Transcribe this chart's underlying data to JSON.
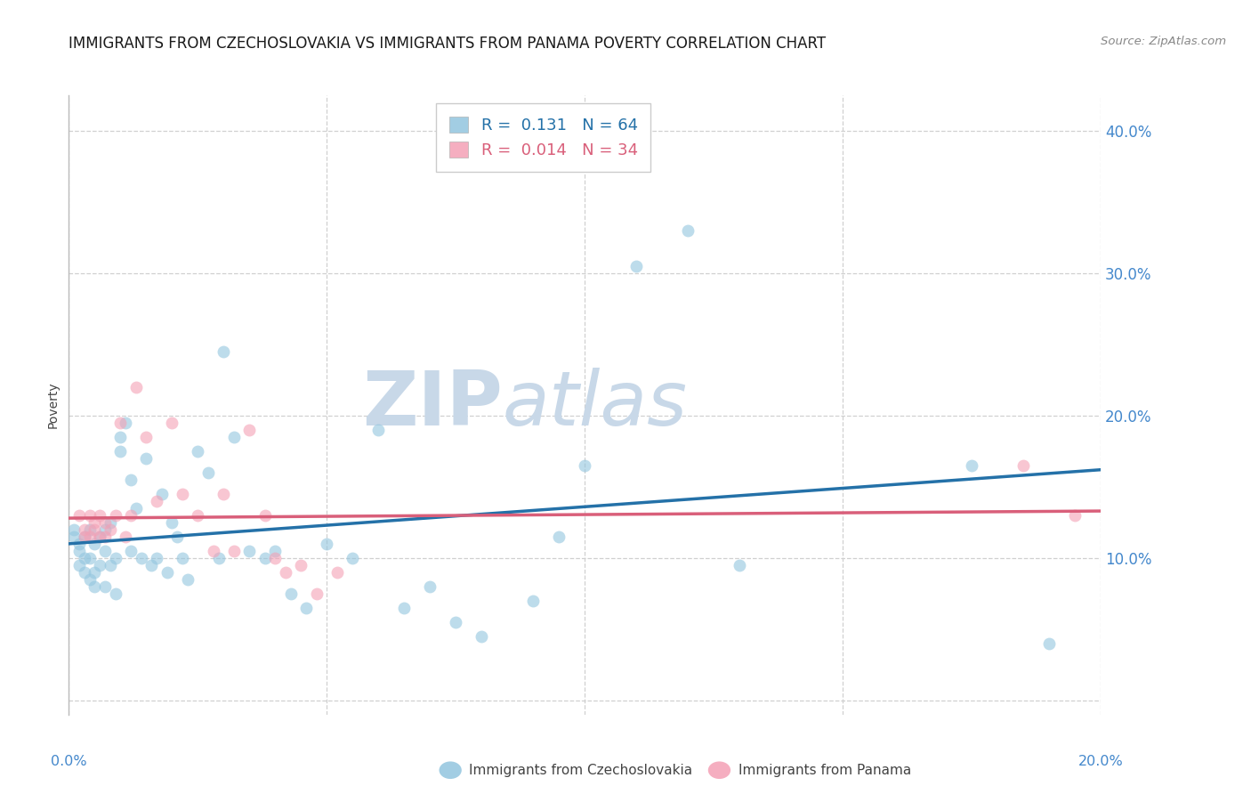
{
  "title": "IMMIGRANTS FROM CZECHOSLOVAKIA VS IMMIGRANTS FROM PANAMA POVERTY CORRELATION CHART",
  "source": "Source: ZipAtlas.com",
  "ylabel": "Poverty",
  "watermark_zip": "ZIP",
  "watermark_atlas": "atlas",
  "legend": [
    {
      "label": "Immigrants from Czechoslovakia",
      "color": "#92c5de",
      "R": "0.131",
      "N": "64"
    },
    {
      "label": "Immigrants from Panama",
      "color": "#f4a0b5",
      "R": "0.014",
      "N": "34"
    }
  ],
  "x_min": 0.0,
  "x_max": 0.2,
  "y_min": -0.01,
  "y_max": 0.425,
  "yticks": [
    0.0,
    0.1,
    0.2,
    0.3,
    0.4
  ],
  "ytick_labels": [
    "",
    "10.0%",
    "20.0%",
    "30.0%",
    "40.0%"
  ],
  "xticks": [
    0.0,
    0.05,
    0.1,
    0.15,
    0.2
  ],
  "blue_scatter_x": [
    0.001,
    0.001,
    0.002,
    0.002,
    0.002,
    0.003,
    0.003,
    0.003,
    0.004,
    0.004,
    0.004,
    0.005,
    0.005,
    0.005,
    0.006,
    0.006,
    0.007,
    0.007,
    0.007,
    0.008,
    0.008,
    0.009,
    0.009,
    0.01,
    0.01,
    0.011,
    0.012,
    0.012,
    0.013,
    0.014,
    0.015,
    0.016,
    0.017,
    0.018,
    0.019,
    0.02,
    0.021,
    0.022,
    0.023,
    0.025,
    0.027,
    0.029,
    0.03,
    0.032,
    0.035,
    0.038,
    0.04,
    0.043,
    0.046,
    0.05,
    0.055,
    0.06,
    0.065,
    0.07,
    0.075,
    0.08,
    0.09,
    0.095,
    0.1,
    0.11,
    0.12,
    0.13,
    0.175,
    0.19
  ],
  "blue_scatter_y": [
    0.115,
    0.12,
    0.11,
    0.105,
    0.095,
    0.115,
    0.1,
    0.09,
    0.12,
    0.1,
    0.085,
    0.11,
    0.09,
    0.08,
    0.115,
    0.095,
    0.12,
    0.105,
    0.08,
    0.125,
    0.095,
    0.1,
    0.075,
    0.185,
    0.175,
    0.195,
    0.155,
    0.105,
    0.135,
    0.1,
    0.17,
    0.095,
    0.1,
    0.145,
    0.09,
    0.125,
    0.115,
    0.1,
    0.085,
    0.175,
    0.16,
    0.1,
    0.245,
    0.185,
    0.105,
    0.1,
    0.105,
    0.075,
    0.065,
    0.11,
    0.1,
    0.19,
    0.065,
    0.08,
    0.055,
    0.045,
    0.07,
    0.115,
    0.165,
    0.305,
    0.33,
    0.095,
    0.165,
    0.04
  ],
  "pink_scatter_x": [
    0.002,
    0.003,
    0.003,
    0.004,
    0.004,
    0.005,
    0.005,
    0.006,
    0.006,
    0.007,
    0.007,
    0.008,
    0.009,
    0.01,
    0.011,
    0.012,
    0.013,
    0.015,
    0.017,
    0.02,
    0.022,
    0.025,
    0.028,
    0.03,
    0.032,
    0.035,
    0.038,
    0.04,
    0.042,
    0.045,
    0.048,
    0.052,
    0.185,
    0.195
  ],
  "pink_scatter_y": [
    0.13,
    0.12,
    0.115,
    0.13,
    0.115,
    0.125,
    0.12,
    0.13,
    0.115,
    0.125,
    0.115,
    0.12,
    0.13,
    0.195,
    0.115,
    0.13,
    0.22,
    0.185,
    0.14,
    0.195,
    0.145,
    0.13,
    0.105,
    0.145,
    0.105,
    0.19,
    0.13,
    0.1,
    0.09,
    0.095,
    0.075,
    0.09,
    0.165,
    0.13
  ],
  "blue_line_x": [
    0.0,
    0.2
  ],
  "blue_line_y": [
    0.11,
    0.162
  ],
  "pink_line_x": [
    0.0,
    0.2
  ],
  "pink_line_y": [
    0.128,
    0.133
  ],
  "blue_color": "#92c5de",
  "pink_color": "#f4a0b5",
  "blue_line_color": "#2471a8",
  "pink_line_color": "#d95f7a",
  "watermark_color_zip": "#c8d8e8",
  "watermark_color_atlas": "#c8d8e8",
  "grid_color": "#d0d0d0",
  "title_color": "#1a1a1a",
  "right_axis_color": "#4488cc",
  "title_fontsize": 12,
  "source_fontsize": 9.5,
  "legend_fontsize": 12,
  "axis_label_fontsize": 10,
  "scatter_alpha": 0.6,
  "scatter_size": 100,
  "line_width": 2.5
}
